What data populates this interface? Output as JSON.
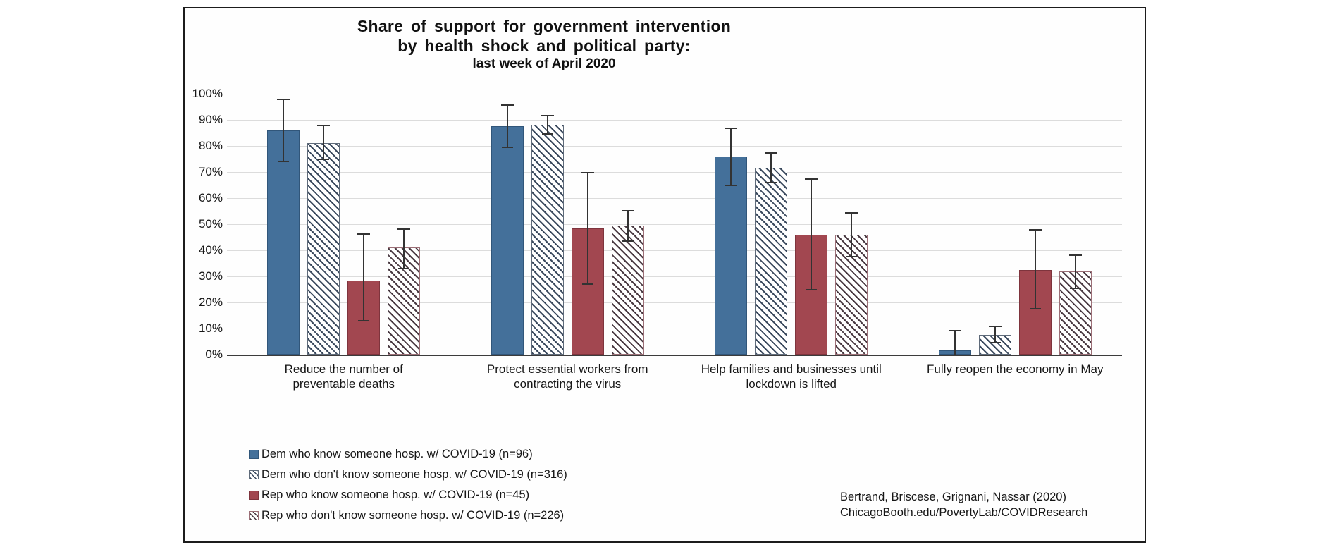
{
  "chart_data": {
    "type": "bar",
    "title_lines": [
      "Share of support for government intervention",
      "by health shock and political party:",
      "last week of April 2020"
    ],
    "ylim": [
      0,
      100
    ],
    "grid": true,
    "yticks": [
      "0%",
      "10%",
      "20%",
      "30%",
      "40%",
      "50%",
      "60%",
      "70%",
      "80%",
      "90%",
      "100%"
    ],
    "categories": [
      "Reduce the number of\npreventable deaths",
      "Protect essential workers from\ncontracting the virus",
      "Help families and businesses until\nlockdown is lifted",
      "Fully reopen the economy in May"
    ],
    "series": [
      {
        "name": "Dem who know someone hosp. w/ COVID-19 (n=96)",
        "fill": "solid",
        "color": "#44709a",
        "border_color": "#31567a",
        "values": [
          86,
          87.5,
          76,
          1.5
        ],
        "err_low": [
          74,
          79.5,
          65,
          0
        ],
        "err_high": [
          98,
          96,
          87,
          9.5
        ]
      },
      {
        "name": "Dem who don't know someone hosp. w/ COVID-19 (n=316)",
        "fill": "hatch",
        "color": "#3b4a5e",
        "border_color": "#5f6b7a",
        "values": [
          81,
          88,
          71.5,
          7.5
        ],
        "err_low": [
          75,
          84.5,
          66,
          4.5
        ],
        "err_high": [
          88,
          92,
          77.5,
          11
        ]
      },
      {
        "name": "Rep who know someone hosp. w/ COVID-19 (n=45)",
        "fill": "solid",
        "color": "#a24750",
        "border_color": "#7e343d",
        "values": [
          28.5,
          48.5,
          46,
          32.5
        ],
        "err_low": [
          13,
          27,
          25,
          17.5
        ],
        "err_high": [
          46.5,
          70,
          67.5,
          48
        ]
      },
      {
        "name": "Rep who don't know someone hosp. w/ COVID-19 (n=226)",
        "fill": "hatch",
        "color": "#4a3a42",
        "border_color": "#9c6f77",
        "values": [
          41,
          49.5,
          46,
          32
        ],
        "err_low": [
          33,
          43.5,
          37.5,
          25.5
        ],
        "err_high": [
          48.5,
          55.5,
          54.5,
          38.5
        ]
      }
    ],
    "legend_position": "bottom-left",
    "attribution": [
      "Bertrand, Briscese, Grignani, Nassar (2020)",
      "ChicagoBooth.edu/PovertyLab/COVIDResearch"
    ]
  }
}
